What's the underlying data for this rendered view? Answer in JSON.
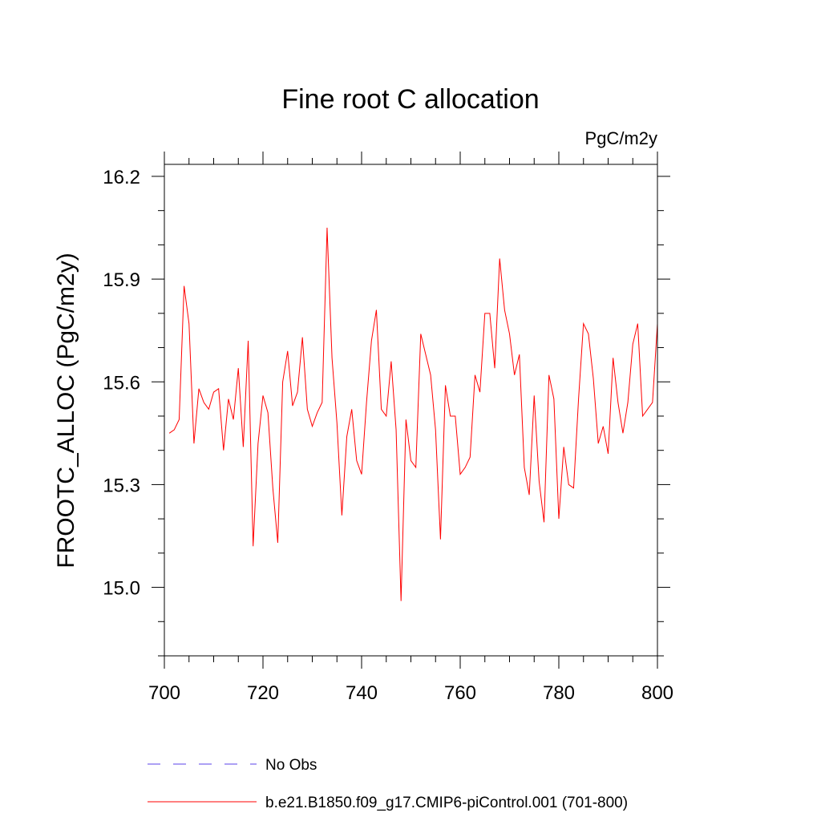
{
  "chart_data": {
    "type": "line",
    "title": "Fine root C allocation",
    "units": "PgC/m2y",
    "ylabel": "FROOTC_ALLOC  (PgC/m2y)",
    "xlabel": "",
    "xlim": [
      700,
      800
    ],
    "ylim": [
      14.8,
      16.235
    ],
    "xticks": [
      700,
      720,
      740,
      760,
      780,
      800
    ],
    "xtick_labels": [
      "700",
      "720",
      "740",
      "760",
      "780",
      "800"
    ],
    "yticks": [
      15.0,
      15.3,
      15.6,
      15.9,
      16.2
    ],
    "ytick_labels": [
      "15.0",
      "15.3",
      "15.6",
      "15.9",
      "16.2"
    ],
    "x_minor_step": 5,
    "y_minor_step": 0.1,
    "grid": false,
    "legend_position": "bottom",
    "series": [
      {
        "name": "b.e21.B1850.f09_g17.CMIP6-piControl.001 (701-800)",
        "color": "#ff0000",
        "style": "solid",
        "x": [
          701,
          702,
          703,
          704,
          705,
          706,
          707,
          708,
          709,
          710,
          711,
          712,
          713,
          714,
          715,
          716,
          717,
          718,
          719,
          720,
          721,
          722,
          723,
          724,
          725,
          726,
          727,
          728,
          729,
          730,
          731,
          732,
          733,
          734,
          735,
          736,
          737,
          738,
          739,
          740,
          741,
          742,
          743,
          744,
          745,
          746,
          747,
          748,
          749,
          750,
          751,
          752,
          753,
          754,
          755,
          756,
          757,
          758,
          759,
          760,
          761,
          762,
          763,
          764,
          765,
          766,
          767,
          768,
          769,
          770,
          771,
          772,
          773,
          774,
          775,
          776,
          777,
          778,
          779,
          780,
          781,
          782,
          783,
          784,
          785,
          786,
          787,
          788,
          789,
          790,
          791,
          792,
          793,
          794,
          795,
          796,
          797,
          798,
          799,
          800
        ],
        "values": [
          15.45,
          15.46,
          15.49,
          15.88,
          15.77,
          15.42,
          15.58,
          15.54,
          15.52,
          15.57,
          15.58,
          15.4,
          15.55,
          15.49,
          15.64,
          15.41,
          15.72,
          15.12,
          15.42,
          15.56,
          15.51,
          15.29,
          15.13,
          15.6,
          15.69,
          15.53,
          15.57,
          15.73,
          15.52,
          15.47,
          15.51,
          15.54,
          16.05,
          15.67,
          15.48,
          15.21,
          15.44,
          15.52,
          15.37,
          15.33,
          15.54,
          15.72,
          15.81,
          15.52,
          15.5,
          15.66,
          15.46,
          14.96,
          15.49,
          15.37,
          15.35,
          15.74,
          15.68,
          15.62,
          15.46,
          15.14,
          15.59,
          15.5,
          15.5,
          15.33,
          15.35,
          15.38,
          15.62,
          15.57,
          15.8,
          15.8,
          15.64,
          15.96,
          15.81,
          15.74,
          15.62,
          15.68,
          15.35,
          15.27,
          15.56,
          15.31,
          15.19,
          15.62,
          15.55,
          15.2,
          15.41,
          15.3,
          15.29,
          15.55,
          15.77,
          15.74,
          15.61,
          15.42,
          15.47,
          15.39,
          15.67,
          15.54,
          15.45,
          15.54,
          15.71,
          15.77,
          15.5,
          15.52,
          15.54,
          15.77
        ]
      }
    ],
    "legend": [
      {
        "label": "No Obs",
        "color": "#7b68ee",
        "style": "dashed"
      },
      {
        "label": "b.e21.B1850.f09_g17.CMIP6-piControl.001 (701-800)",
        "color": "#ff0000",
        "style": "solid"
      }
    ]
  }
}
